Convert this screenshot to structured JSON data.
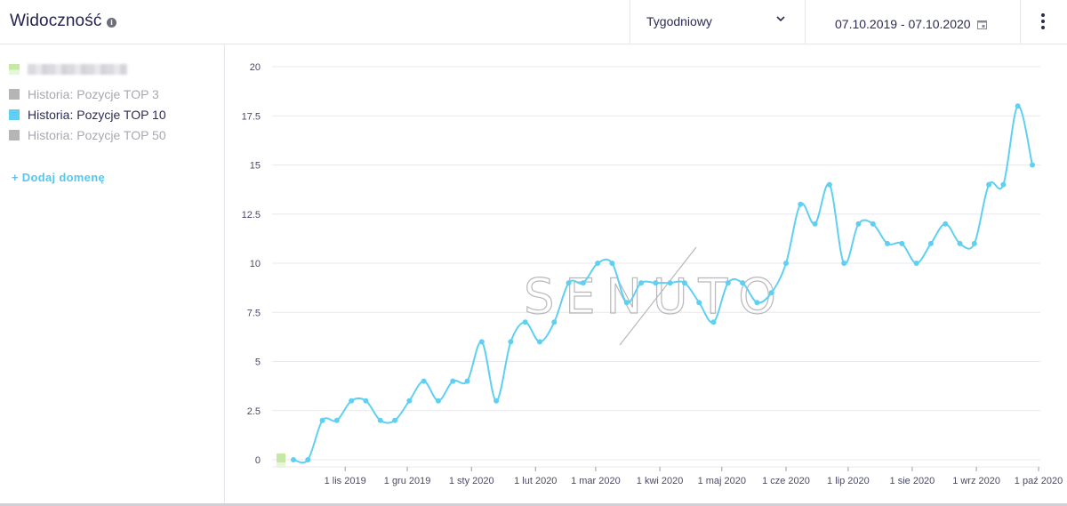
{
  "header": {
    "title": "Widoczność",
    "info_icon": "info-icon",
    "period": "Tygodniowy",
    "date_range": "07.10.2019 - 07.10.2020"
  },
  "sidebar": {
    "legend": [
      {
        "label": "",
        "color": "#c5e8a5",
        "active": false
      },
      {
        "label": "Historia: Pozycje TOP 3",
        "color": "#b5b5b8",
        "active": false
      },
      {
        "label": "Historia: Pozycje TOP 10",
        "color": "#5fd0f2",
        "active": true
      },
      {
        "label": "Historia: Pozycje TOP 50",
        "color": "#b5b5b8",
        "active": false
      }
    ],
    "add_domain": "+ Dodaj domenę"
  },
  "watermark": "SENUTO",
  "chart_data": {
    "type": "line",
    "title": "",
    "xlabel": "",
    "ylabel": "",
    "ylim": [
      0,
      20
    ],
    "yticks": [
      "0",
      "2.5",
      "5",
      "7.5",
      "10",
      "12.5",
      "15",
      "17.5",
      "20"
    ],
    "ytick_values": [
      0,
      2.5,
      5,
      7.5,
      10,
      12.5,
      15,
      17.5,
      20
    ],
    "xticks": [
      {
        "label": "1 lis 2019",
        "week": 3.57
      },
      {
        "label": "1 gru 2019",
        "week": 7.86
      },
      {
        "label": "1 sty 2020",
        "week": 12.29
      },
      {
        "label": "1 lut 2020",
        "week": 16.71
      },
      {
        "label": "1 mar 2020",
        "week": 20.86
      },
      {
        "label": "1 kwi 2020",
        "week": 25.29
      },
      {
        "label": "1 maj 2020",
        "week": 29.57
      },
      {
        "label": "1 cze 2020",
        "week": 34.0
      },
      {
        "label": "1 lip 2020",
        "week": 38.29
      },
      {
        "label": "1 sie 2020",
        "week": 42.71
      },
      {
        "label": "1 wrz 2020",
        "week": 47.14
      },
      {
        "label": "1 paź 2020",
        "week": 51.43
      }
    ],
    "grid": true,
    "legend": "left-panel",
    "series": [
      {
        "name": "Historia: Pozycje TOP 10",
        "color": "#5fd0f2",
        "values": [
          0,
          0,
          2,
          2,
          3,
          3,
          2,
          2,
          3,
          4,
          3,
          4,
          4,
          6,
          3,
          6,
          7,
          6,
          7,
          9,
          9,
          10,
          10,
          8,
          9,
          9,
          9,
          9,
          8,
          7,
          9,
          9,
          8,
          8.5,
          10,
          13,
          12,
          14,
          10,
          12,
          12,
          11,
          11,
          10,
          11,
          12,
          11,
          11,
          14,
          14,
          18,
          15
        ]
      }
    ]
  }
}
